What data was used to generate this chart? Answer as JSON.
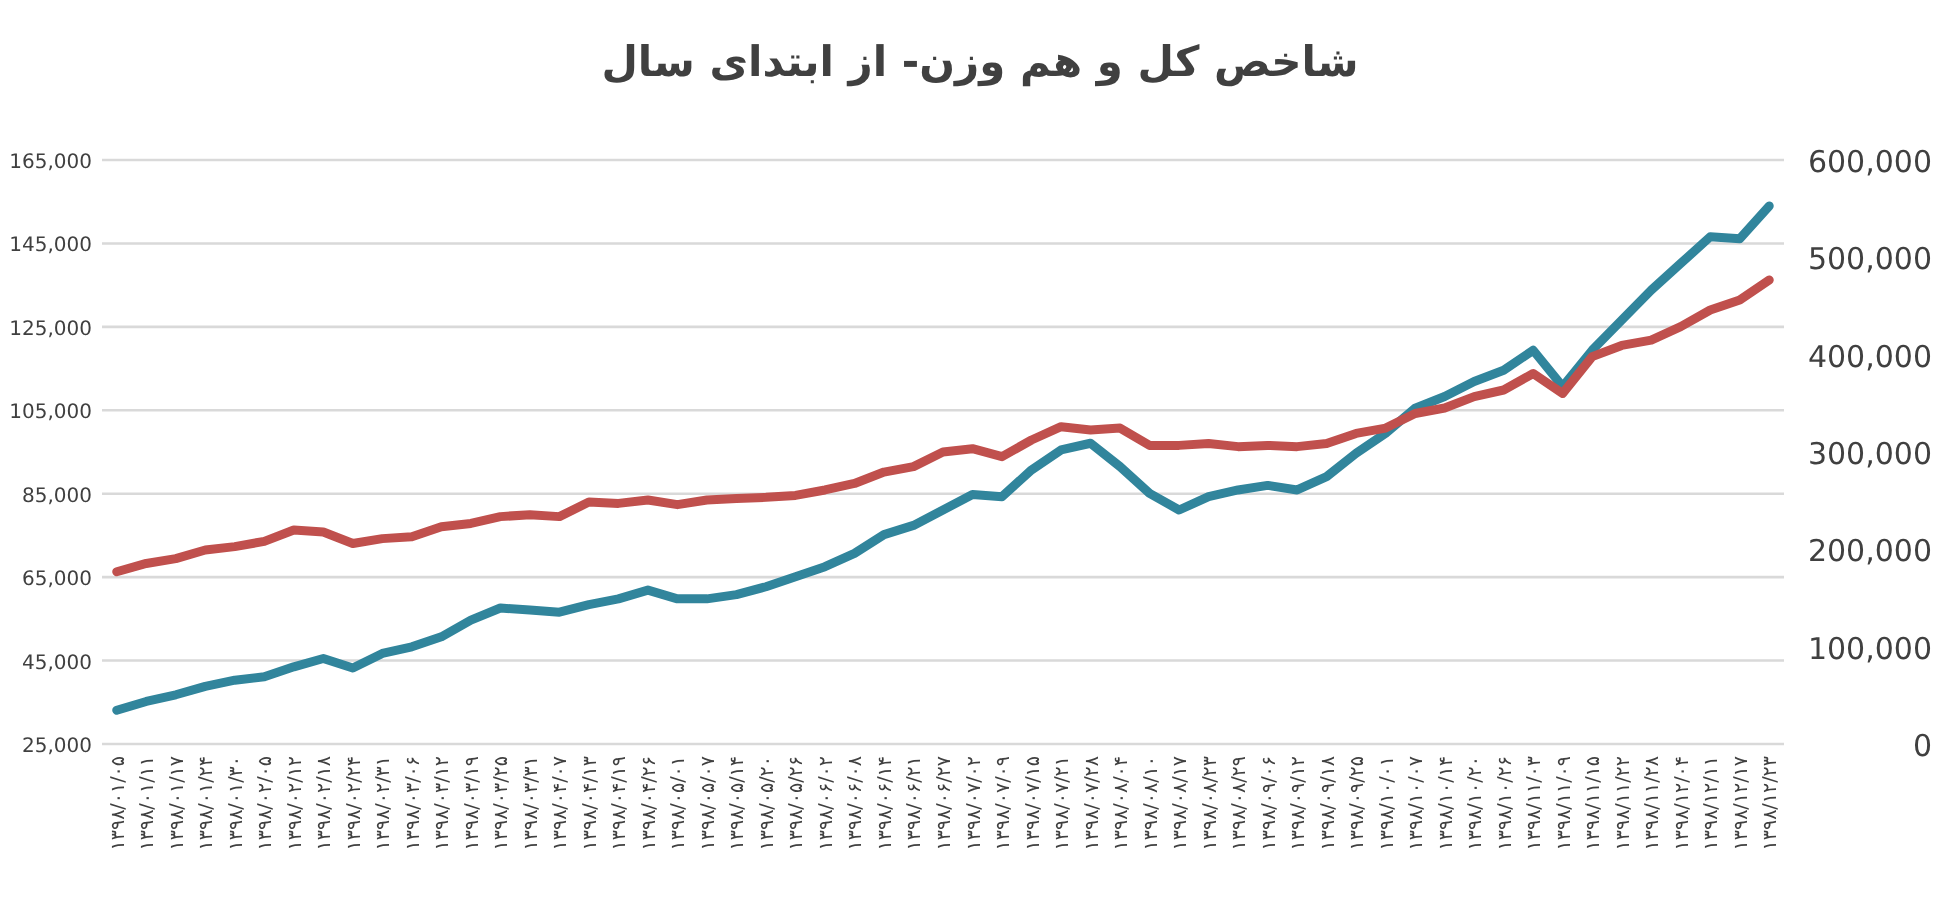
{
  "chart_data": {
    "type": "line",
    "title": "شاخص کل و هم وزن- از ابتدای سال",
    "categories": [
      "۱۳۹۸/۰۱/۰۵",
      "۱۳۹۸/۰۱/۱۱",
      "۱۳۹۸/۰۱/۱۷",
      "۱۳۹۸/۰۱/۲۴",
      "۱۳۹۸/۰۱/۳۰",
      "۱۳۹۸/۰۲/۰۵",
      "۱۳۹۸/۰۲/۱۲",
      "۱۳۹۸/۰۲/۱۸",
      "۱۳۹۸/۰۲/۲۴",
      "۱۳۹۸/۰۲/۳۱",
      "۱۳۹۸/۰۳/۰۶",
      "۱۳۹۸/۰۳/۱۲",
      "۱۳۹۸/۰۳/۱۹",
      "۱۳۹۸/۰۳/۲۵",
      "۱۳۹۸/۰۳/۳۱",
      "۱۳۹۸/۰۴/۰۷",
      "۱۳۹۸/۰۴/۱۳",
      "۱۳۹۸/۰۴/۱۹",
      "۱۳۹۸/۰۴/۲۶",
      "۱۳۹۸/۰۵/۰۱",
      "۱۳۹۸/۰۵/۰۷",
      "۱۳۹۸/۰۵/۱۴",
      "۱۳۹۸/۰۵/۲۰",
      "۱۳۹۸/۰۵/۲۶",
      "۱۳۹۸/۰۶/۰۲",
      "۱۳۹۸/۰۶/۰۸",
      "۱۳۹۸/۰۶/۱۴",
      "۱۳۹۸/۰۶/۲۱",
      "۱۳۹۸/۰۶/۲۷",
      "۱۳۹۸/۰۷/۰۲",
      "۱۳۹۸/۰۷/۰۹",
      "۱۳۹۸/۰۷/۱۵",
      "۱۳۹۸/۰۷/۲۱",
      "۱۳۹۸/۰۷/۲۸",
      "۱۳۹۸/۰۸/۰۴",
      "۱۳۹۸/۰۸/۱۰",
      "۱۳۹۸/۰۸/۱۷",
      "۱۳۹۸/۰۸/۲۳",
      "۱۳۹۸/۰۸/۲۹",
      "۱۳۹۸/۰۹/۰۶",
      "۱۳۹۸/۰۹/۱۲",
      "۱۳۹۸/۰۹/۱۸",
      "۱۳۹۸/۰۹/۲۵",
      "۱۳۹۸/۱۰/۰۱",
      "۱۳۹۸/۱۰/۰۷",
      "۱۳۹۸/۱۰/۱۴",
      "۱۳۹۸/۱۰/۲۰",
      "۱۳۹۸/۱۰/۲۶",
      "۱۳۹۸/۱۱/۰۳",
      "۱۳۹۸/۱۱/۰۹",
      "۱۳۹۸/۱۱/۱۵",
      "۱۳۹۸/۱۱/۲۲",
      "۱۳۹۸/۱۱/۲۸",
      "۱۳۹۸/۱۲/۰۴",
      "۱۳۹۸/۱۲/۱۱",
      "۱۳۹۸/۱۲/۱۷",
      "۱۳۹۸/۱۲/۲۳"
    ],
    "series": [
      {
        "color": "#31859c",
        "values": [
          33100,
          35200,
          36800,
          38800,
          40300,
          41100,
          43500,
          45500,
          43200,
          46700,
          48300,
          50700,
          54700,
          57600,
          57100,
          56600,
          58400,
          59800,
          61900,
          59800,
          59800,
          60800,
          62700,
          65100,
          67500,
          70700,
          75200,
          77400,
          81100,
          84800,
          84300,
          90700,
          95500,
          97100,
          91500,
          85100,
          81100,
          84300,
          85900,
          87000,
          85900,
          89100,
          94700,
          99500,
          105500,
          108300,
          111900,
          114600,
          119400,
          110700,
          119400,
          126600,
          133800,
          140200,
          146600,
          146100,
          154000
        ]
      },
      {
        "color": "#c0504d",
        "axis": "y2",
        "values": [
          177000,
          185500,
          190400,
          199300,
          202800,
          208200,
          219800,
          217800,
          206000,
          211000,
          213000,
          223300,
          226600,
          233600,
          235600,
          233600,
          248600,
          247200,
          250700,
          245900,
          250700,
          252100,
          253400,
          255400,
          261000,
          267700,
          279400,
          285000,
          300000,
          303400,
          295200,
          312300,
          326000,
          322600,
          324600,
          306800,
          306800,
          308800,
          305500,
          306800,
          305500,
          308800,
          319100,
          324600,
          339600,
          345200,
          356900,
          363700,
          380700,
          360200,
          398000,
          409500,
          415000,
          428800,
          445900,
          456100,
          476700
        ]
      }
    ],
    "ylim": [
      25000,
      165000
    ],
    "yticks": [
      {
        "value": 25000,
        "label": "25,000"
      },
      {
        "value": 45000,
        "label": "45,000"
      },
      {
        "value": 65000,
        "label": "65,000"
      },
      {
        "value": 85000,
        "label": "85,000"
      },
      {
        "value": 105000,
        "label": "105,000"
      },
      {
        "value": 125000,
        "label": "125,000"
      },
      {
        "value": 145000,
        "label": "145,000"
      },
      {
        "value": 165000,
        "label": "165,000"
      }
    ],
    "y2lim": [
      0,
      600000
    ],
    "y2ticks": [
      0,
      {
        "value": 100000,
        "label": "100,000"
      },
      {
        "value": 200000,
        "label": "200,000"
      },
      {
        "value": 300000,
        "label": "300,000"
      },
      {
        "value": 400000,
        "label": "400,000"
      },
      {
        "value": 500000,
        "label": "500,000"
      },
      {
        "value": 600000,
        "label": "600,000"
      }
    ],
    "grid": "y"
  }
}
